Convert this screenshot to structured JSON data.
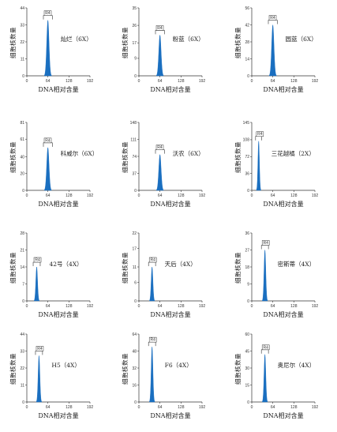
{
  "colors": {
    "peak": "#1a6fc0",
    "axis": "#333333",
    "gate": "#333333"
  },
  "common": {
    "ylabel": "细胞核数量",
    "xlabel": "DNA相对含量",
    "gate_label": "R4"
  },
  "chart_data": [
    {
      "type": "area",
      "title": "灿烂（6X）",
      "xticks": [
        0,
        64,
        128,
        192
      ],
      "yticks": [
        0,
        11,
        22,
        33,
        44
      ],
      "ylim": [
        0,
        44
      ],
      "xlim": [
        0,
        192
      ],
      "peak": {
        "center": 64,
        "height": 36,
        "width": 3.5
      }
    },
    {
      "type": "area",
      "title": "粉蓝（6X）",
      "xticks": [
        0,
        64,
        128,
        192
      ],
      "yticks": [
        0,
        9,
        17,
        26,
        35
      ],
      "ylim": [
        0,
        35
      ],
      "xlim": [
        0,
        192
      ],
      "peak": {
        "center": 64,
        "height": 21,
        "width": 3.5
      }
    },
    {
      "type": "area",
      "title": "圆蓝（6X）",
      "xticks": [
        0,
        64,
        128,
        192
      ],
      "yticks": [
        0,
        14,
        28,
        42,
        56
      ],
      "ylim": [
        0,
        56
      ],
      "xlim": [
        0,
        192
      ],
      "peak": {
        "center": 64,
        "height": 42,
        "width": 3.5
      }
    },
    {
      "type": "area",
      "title": "科威尔（6X）",
      "xticks": [
        0,
        64,
        128,
        192
      ],
      "yticks": [
        0,
        20,
        40,
        61,
        81
      ],
      "ylim": [
        0,
        81
      ],
      "xlim": [
        0,
        192
      ],
      "peak": {
        "center": 64,
        "height": 51,
        "width": 3.5
      }
    },
    {
      "type": "area",
      "title": "沃农（6X）",
      "xticks": [
        0,
        64,
        128,
        192
      ],
      "yticks": [
        0,
        37,
        74,
        111,
        148
      ],
      "ylim": [
        0,
        148
      ],
      "xlim": [
        0,
        192
      ],
      "peak": {
        "center": 64,
        "height": 78,
        "width": 3.5
      }
    },
    {
      "type": "area",
      "title": "三花越橘（2X）",
      "xticks": [
        0,
        64,
        128,
        192
      ],
      "yticks": [
        0,
        36,
        72,
        108,
        145
      ],
      "ylim": [
        0,
        145
      ],
      "xlim": [
        0,
        192
      ],
      "peak": {
        "center": 21,
        "height": 105,
        "width": 2.2
      }
    },
    {
      "type": "area",
      "title": "42号（4X）",
      "xticks": [
        0,
        64,
        128,
        192
      ],
      "yticks": [
        0,
        7,
        14,
        21,
        28
      ],
      "ylim": [
        0,
        28
      ],
      "xlim": [
        0,
        192
      ],
      "peak": {
        "center": 30,
        "height": 14,
        "width": 2.6
      }
    },
    {
      "type": "area",
      "title": "天后（4X）",
      "xticks": [
        0,
        64,
        128,
        192
      ],
      "yticks": [
        0,
        6,
        11,
        17,
        22
      ],
      "ylim": [
        0,
        22
      ],
      "xlim": [
        0,
        192
      ],
      "peak": {
        "center": 40,
        "height": 11,
        "width": 2.6
      }
    },
    {
      "type": "area",
      "title": "密斯蒂（4X）",
      "xticks": [
        0,
        64,
        128,
        192
      ],
      "yticks": [
        0,
        9,
        18,
        27,
        36
      ],
      "ylim": [
        0,
        36
      ],
      "xlim": [
        0,
        192
      ],
      "peak": {
        "center": 40,
        "height": 27,
        "width": 2.6
      }
    },
    {
      "type": "area",
      "title": "H5（4X）",
      "xticks": [
        0,
        64,
        128,
        192
      ],
      "yticks": [
        0,
        11,
        22,
        33,
        44
      ],
      "ylim": [
        0,
        44
      ],
      "xlim": [
        0,
        192
      ],
      "peak": {
        "center": 37,
        "height": 30,
        "width": 2.6
      }
    },
    {
      "type": "area",
      "title": "F6（4X）",
      "xticks": [
        0,
        64,
        128,
        192
      ],
      "yticks": [
        0,
        16,
        32,
        48,
        64
      ],
      "ylim": [
        0,
        64
      ],
      "xlim": [
        0,
        192
      ],
      "peak": {
        "center": 40,
        "height": 52,
        "width": 2.6
      }
    },
    {
      "type": "area",
      "title": "奥尼尔（4X）",
      "xticks": [
        0,
        64,
        128,
        192
      ],
      "yticks": [
        0,
        15,
        30,
        45,
        60
      ],
      "ylim": [
        0,
        60
      ],
      "xlim": [
        0,
        192
      ],
      "peak": {
        "center": 40,
        "height": 42,
        "width": 2.6
      }
    }
  ]
}
